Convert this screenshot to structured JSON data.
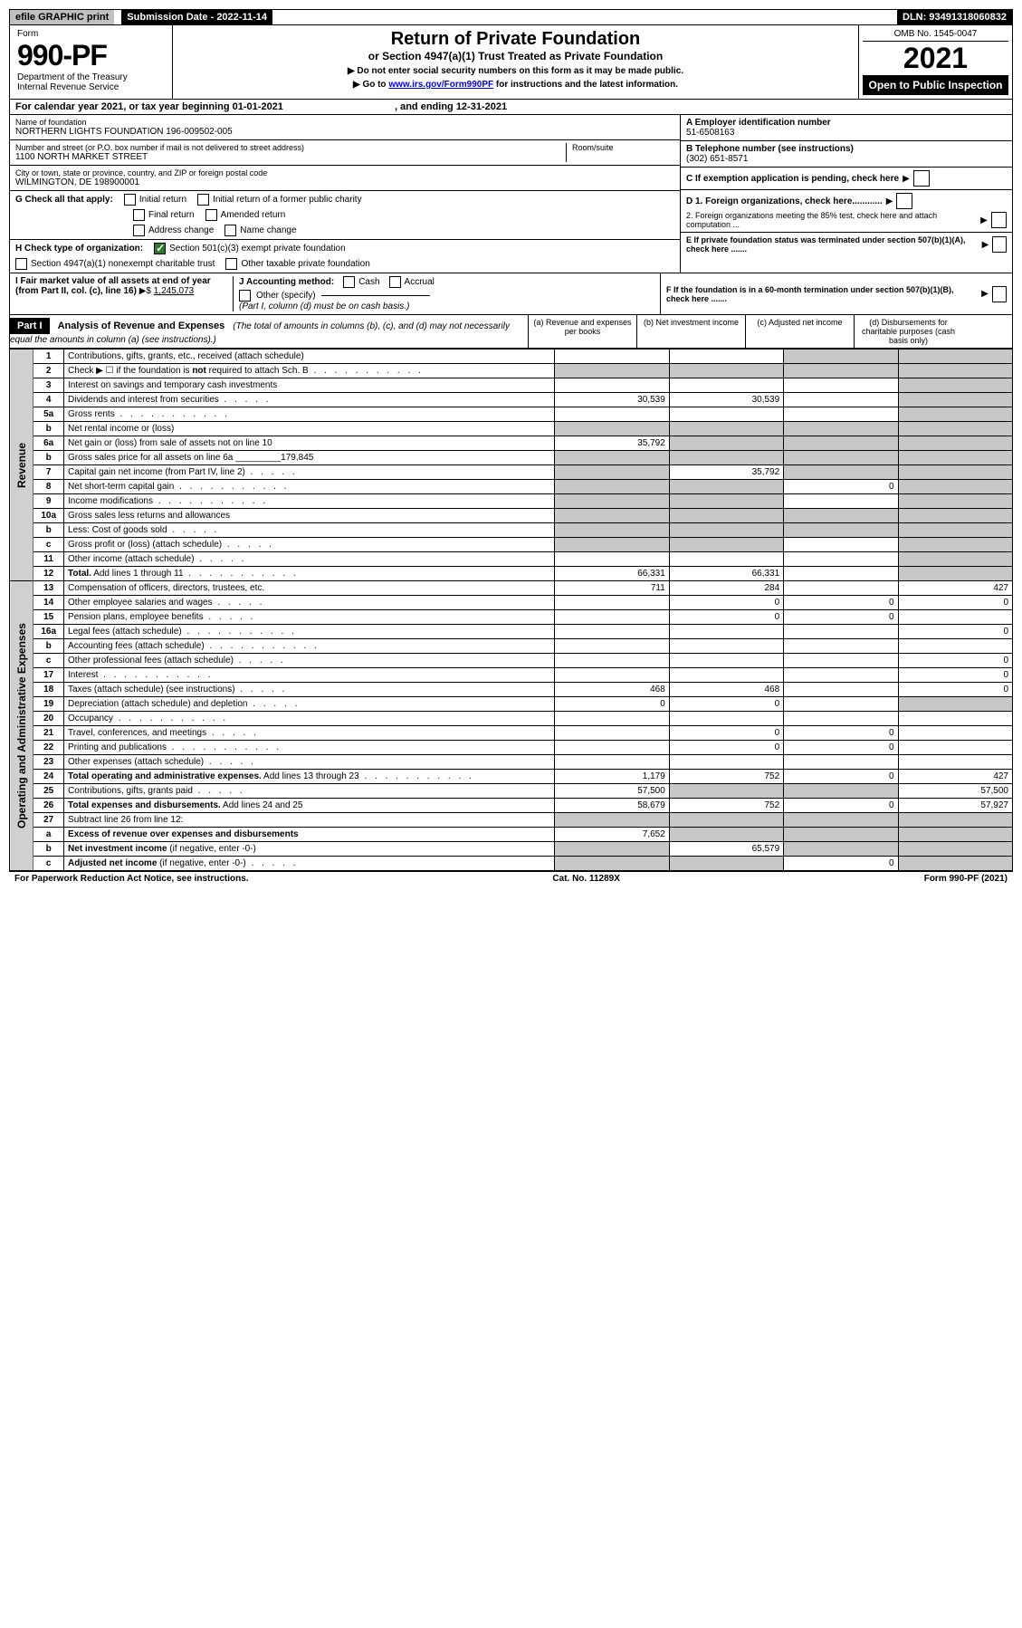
{
  "topbar": {
    "efile": "efile GRAPHIC print",
    "subdate": "Submission Date - 2022-11-14",
    "dln": "DLN: 93491318060832"
  },
  "header": {
    "form_word": "Form",
    "form_no": "990-PF",
    "dept1": "Department of the Treasury",
    "dept2": "Internal Revenue Service",
    "title": "Return of Private Foundation",
    "subtitle": "or Section 4947(a)(1) Trust Treated as Private Foundation",
    "instr1": "▶ Do not enter social security numbers on this form as it may be made public.",
    "instr2_pre": "▶ Go to ",
    "instr2_link": "www.irs.gov/Form990PF",
    "instr2_post": " for instructions and the latest information.",
    "omb": "OMB No. 1545-0047",
    "year": "2021",
    "open": "Open to Public Inspection"
  },
  "cal_year": {
    "pre": "For calendar year 2021, or tax year beginning 01-01-2021",
    "mid": ", and ending 12-31-2021"
  },
  "info": {
    "name_label": "Name of foundation",
    "name": "NORTHERN LIGHTS FOUNDATION 196-009502-005",
    "addr_label": "Number and street (or P.O. box number if mail is not delivered to street address)",
    "addr": "1100 NORTH MARKET STREET",
    "room_label": "Room/suite",
    "city_label": "City or town, state or province, country, and ZIP or foreign postal code",
    "city": "WILMINGTON, DE  198900001",
    "a_label": "A Employer identification number",
    "a_val": "51-6508163",
    "b_label": "B Telephone number (see instructions)",
    "b_val": "(302) 651-8571",
    "c_label": "C If exemption application is pending, check here",
    "d1": "D 1. Foreign organizations, check here............",
    "d2": "2. Foreign organizations meeting the 85% test, check here and attach computation ...",
    "e": "E  If private foundation status was terminated under section 507(b)(1)(A), check here .......",
    "f": "F  If the foundation is in a 60-month termination under section 507(b)(1)(B), check here .......",
    "g_label": "G Check all that apply:",
    "g_opts": [
      "Initial return",
      "Initial return of a former public charity",
      "Final return",
      "Amended return",
      "Address change",
      "Name change"
    ],
    "h_label": "H Check type of organization:",
    "h1": "Section 501(c)(3) exempt private foundation",
    "h2": "Section 4947(a)(1) nonexempt charitable trust",
    "h3": "Other taxable private foundation",
    "i_label": "I Fair market value of all assets at end of year (from Part II, col. (c), line 16)",
    "i_val": "1,245,073",
    "j_label": "J Accounting method:",
    "j_cash": "Cash",
    "j_accrual": "Accrual",
    "j_other": "Other (specify)",
    "j_note": "(Part I, column (d) must be on cash basis.)"
  },
  "part1": {
    "label": "Part I",
    "title": "Analysis of Revenue and Expenses",
    "note": "(The total of amounts in columns (b), (c), and (d) may not necessarily equal the amounts in column (a) (see instructions).)",
    "cols": {
      "a": "(a)    Revenue and expenses per books",
      "b": "(b)    Net investment income",
      "c": "(c)    Adjusted net income",
      "d": "(d)    Disbursements for charitable purposes (cash basis only)"
    }
  },
  "sidelabels": {
    "rev": "Revenue",
    "exp": "Operating and Administrative Expenses"
  },
  "rows": [
    {
      "n": "1",
      "desc": "Contributions, gifts, grants, etc., received (attach schedule)",
      "a": "",
      "b": "",
      "c": "s",
      "d": "s"
    },
    {
      "n": "2",
      "desc": "Check ▶ ☐ if the foundation is <b>not</b> required to attach Sch. B",
      "a": "s",
      "b": "s",
      "c": "s",
      "d": "s",
      "dots": true
    },
    {
      "n": "3",
      "desc": "Interest on savings and temporary cash investments",
      "a": "",
      "b": "",
      "c": "",
      "d": "s"
    },
    {
      "n": "4",
      "desc": "Dividends and interest from securities",
      "a": "30,539",
      "b": "30,539",
      "c": "",
      "d": "s",
      "dots": "sm"
    },
    {
      "n": "5a",
      "desc": "Gross rents",
      "a": "",
      "b": "",
      "c": "",
      "d": "s",
      "dots": true
    },
    {
      "n": "b",
      "desc": "Net rental income or (loss)",
      "a": "s",
      "b": "s",
      "c": "s",
      "d": "s"
    },
    {
      "n": "6a",
      "desc": "Net gain or (loss) from sale of assets not on line 10",
      "a": "35,792",
      "b": "s",
      "c": "s",
      "d": "s"
    },
    {
      "n": "b",
      "desc": "Gross sales price for all assets on line 6a _________179,845",
      "a": "s",
      "b": "s",
      "c": "s",
      "d": "s"
    },
    {
      "n": "7",
      "desc": "Capital gain net income (from Part IV, line 2)",
      "a": "s",
      "b": "35,792",
      "c": "s",
      "d": "s",
      "dots": "sm"
    },
    {
      "n": "8",
      "desc": "Net short-term capital gain",
      "a": "s",
      "b": "s",
      "c": "0",
      "d": "s",
      "dots": true
    },
    {
      "n": "9",
      "desc": "Income modifications",
      "a": "s",
      "b": "s",
      "c": "",
      "d": "s",
      "dots": true
    },
    {
      "n": "10a",
      "desc": "Gross sales less returns and allowances",
      "a": "s",
      "b": "s",
      "c": "s",
      "d": "s"
    },
    {
      "n": "b",
      "desc": "Less: Cost of goods sold",
      "a": "s",
      "b": "s",
      "c": "s",
      "d": "s",
      "dots": "sm"
    },
    {
      "n": "c",
      "desc": "Gross profit or (loss) (attach schedule)",
      "a": "s",
      "b": "s",
      "c": "",
      "d": "s",
      "dots": "sm"
    },
    {
      "n": "11",
      "desc": "Other income (attach schedule)",
      "a": "",
      "b": "",
      "c": "",
      "d": "s",
      "dots": "sm"
    },
    {
      "n": "12",
      "desc": "<b>Total.</b> Add lines 1 through 11",
      "a": "66,331",
      "b": "66,331",
      "c": "",
      "d": "s",
      "dots": true
    },
    {
      "n": "13",
      "desc": "Compensation of officers, directors, trustees, etc.",
      "a": "711",
      "b": "284",
      "c": "",
      "d": "427"
    },
    {
      "n": "14",
      "desc": "Other employee salaries and wages",
      "a": "",
      "b": "0",
      "c": "0",
      "d": "0",
      "dots": "sm"
    },
    {
      "n": "15",
      "desc": "Pension plans, employee benefits",
      "a": "",
      "b": "0",
      "c": "0",
      "d": "",
      "dots": "sm"
    },
    {
      "n": "16a",
      "desc": "Legal fees (attach schedule)",
      "a": "",
      "b": "",
      "c": "",
      "d": "0",
      "dots": true
    },
    {
      "n": "b",
      "desc": "Accounting fees (attach schedule)",
      "a": "",
      "b": "",
      "c": "",
      "d": "",
      "dots": true
    },
    {
      "n": "c",
      "desc": "Other professional fees (attach schedule)",
      "a": "",
      "b": "",
      "c": "",
      "d": "0",
      "dots": "sm"
    },
    {
      "n": "17",
      "desc": "Interest",
      "a": "",
      "b": "",
      "c": "",
      "d": "0",
      "dots": true
    },
    {
      "n": "18",
      "desc": "Taxes (attach schedule) (see instructions)",
      "a": "468",
      "b": "468",
      "c": "",
      "d": "0",
      "dots": "sm"
    },
    {
      "n": "19",
      "desc": "Depreciation (attach schedule) and depletion",
      "a": "0",
      "b": "0",
      "c": "",
      "d": "s",
      "dots": "sm"
    },
    {
      "n": "20",
      "desc": "Occupancy",
      "a": "",
      "b": "",
      "c": "",
      "d": "",
      "dots": true
    },
    {
      "n": "21",
      "desc": "Travel, conferences, and meetings",
      "a": "",
      "b": "0",
      "c": "0",
      "d": "",
      "dots": "sm"
    },
    {
      "n": "22",
      "desc": "Printing and publications",
      "a": "",
      "b": "0",
      "c": "0",
      "d": "",
      "dots": true
    },
    {
      "n": "23",
      "desc": "Other expenses (attach schedule)",
      "a": "",
      "b": "",
      "c": "",
      "d": "",
      "dots": "sm"
    },
    {
      "n": "24",
      "desc": "<b>Total operating and administrative expenses.</b> Add lines 13 through 23",
      "a": "1,179",
      "b": "752",
      "c": "0",
      "d": "427",
      "dots": true
    },
    {
      "n": "25",
      "desc": "Contributions, gifts, grants paid",
      "a": "57,500",
      "b": "s",
      "c": "s",
      "d": "57,500",
      "dots": "sm"
    },
    {
      "n": "26",
      "desc": "<b>Total expenses and disbursements.</b> Add lines 24 and 25",
      "a": "58,679",
      "b": "752",
      "c": "0",
      "d": "57,927"
    },
    {
      "n": "27",
      "desc": "Subtract line 26 from line 12:",
      "a": "s",
      "b": "s",
      "c": "s",
      "d": "s"
    },
    {
      "n": "a",
      "desc": "<b>Excess of revenue over expenses and disbursements</b>",
      "a": "7,652",
      "b": "s",
      "c": "s",
      "d": "s"
    },
    {
      "n": "b",
      "desc": "<b>Net investment income</b> (if negative, enter -0-)",
      "a": "s",
      "b": "65,579",
      "c": "s",
      "d": "s"
    },
    {
      "n": "c",
      "desc": "<b>Adjusted net income</b> (if negative, enter -0-)",
      "a": "s",
      "b": "s",
      "c": "0",
      "d": "s",
      "dots": "sm"
    }
  ],
  "footer": {
    "left": "For Paperwork Reduction Act Notice, see instructions.",
    "mid": "Cat. No. 11289X",
    "right": "Form 990-PF (2021)"
  }
}
